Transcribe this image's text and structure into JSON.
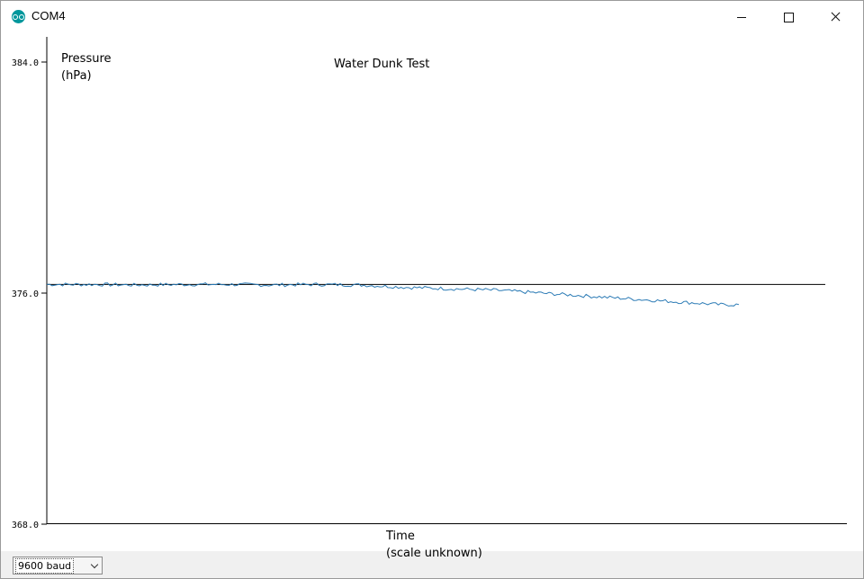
{
  "window": {
    "title": "COM4",
    "icon": "arduino-icon"
  },
  "overlays": {
    "y_label_line1": "Pressure",
    "y_label_line2": "(hPa)",
    "title": "Water Dunk Test",
    "x_label_line1": "Time",
    "x_label_line2": "(scale unknown)"
  },
  "bottom": {
    "baud": "9600 baud"
  },
  "colors": {
    "series": "#2a7ab5",
    "axes": "#000000",
    "reference_line": "#000000"
  },
  "chart_data": {
    "type": "line",
    "ylim": [
      368.0,
      384.0
    ],
    "yticks": [
      "384.0",
      "376.0",
      "368.0"
    ],
    "x": [
      0,
      50,
      100,
      150,
      200,
      250,
      300,
      350,
      400,
      450,
      500,
      550,
      600,
      650,
      700,
      750,
      770
    ],
    "series": [
      {
        "values": [
          376.3,
          376.3,
          376.28,
          376.3,
          376.3,
          376.28,
          376.3,
          376.28,
          376.2,
          376.15,
          376.1,
          376.0,
          375.9,
          375.8,
          375.7,
          375.6,
          375.6
        ]
      }
    ],
    "reference_line": {
      "y": 376.3
    }
  }
}
